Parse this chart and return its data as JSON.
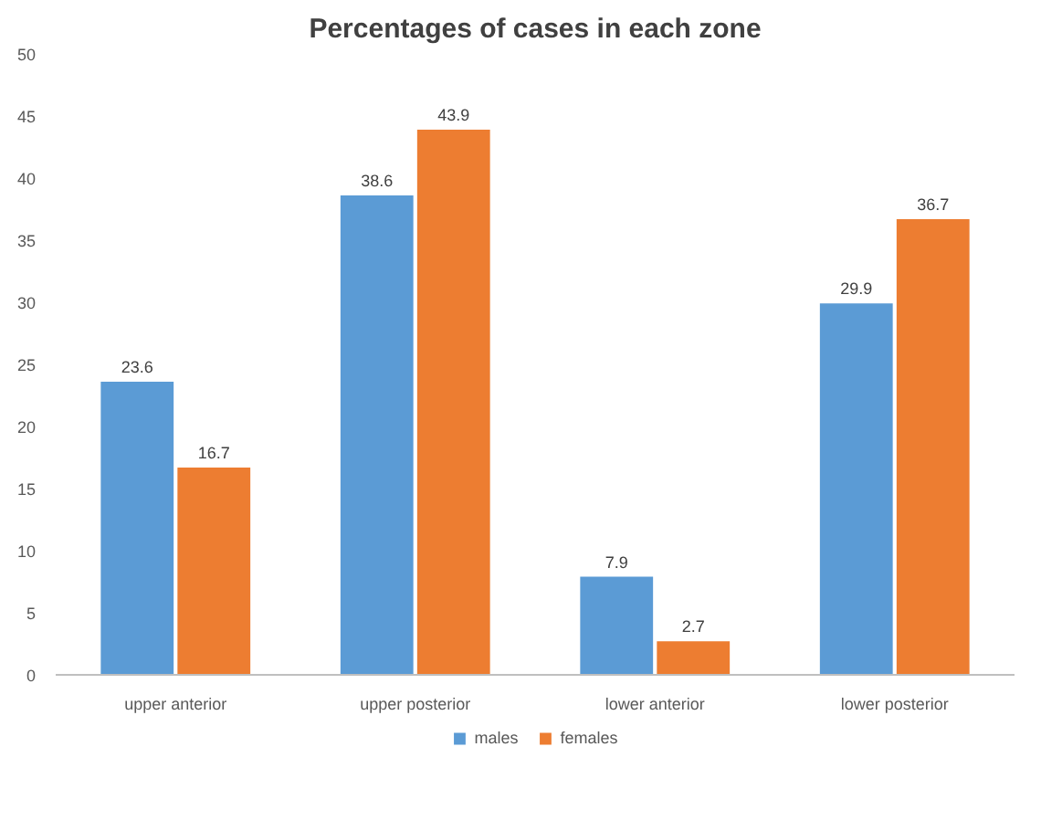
{
  "chart_data": {
    "type": "bar",
    "title": "Percentages of cases in each zone",
    "categories": [
      "upper anterior",
      "upper posterior",
      "lower anterior",
      "lower posterior"
    ],
    "series": [
      {
        "name": "males",
        "color": "#5b9bd5",
        "values": [
          23.6,
          38.6,
          7.9,
          29.9
        ]
      },
      {
        "name": "females",
        "color": "#ed7d31",
        "values": [
          16.7,
          43.9,
          2.7,
          36.7
        ]
      }
    ],
    "ylim": [
      0,
      50
    ],
    "yticks": [
      0,
      5,
      10,
      15,
      20,
      25,
      30,
      35,
      40,
      45,
      50
    ],
    "grid": false,
    "legend": "bottom",
    "data_labels": true
  }
}
